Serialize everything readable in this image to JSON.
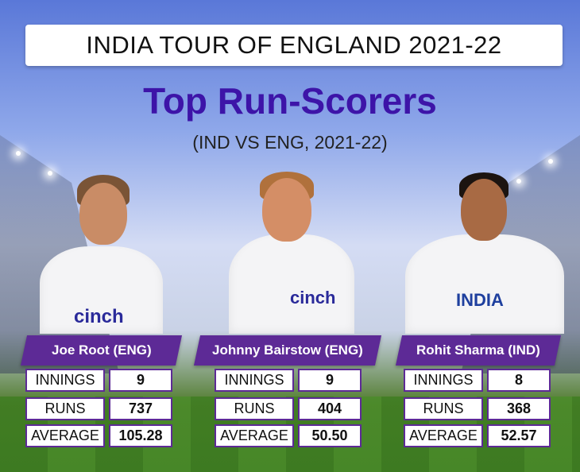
{
  "header": {
    "title": "INDIA TOUR OF ENGLAND 2021-22",
    "heading": "Top Run-Scorers",
    "subheading": "(IND VS ENG, 2021-22)"
  },
  "players": [
    {
      "name": "Joe Root (ENG)",
      "shirt_text": "cinch",
      "stats": [
        {
          "label": "INNINGS",
          "value": "9"
        },
        {
          "label": "RUNS",
          "value": "737"
        },
        {
          "label": "AVERAGE",
          "value": "105.28"
        }
      ]
    },
    {
      "name": "Johnny Bairstow (ENG)",
      "shirt_text": "cinch",
      "stats": [
        {
          "label": "INNINGS",
          "value": "9"
        },
        {
          "label": "RUNS",
          "value": "404"
        },
        {
          "label": "AVERAGE",
          "value": "50.50"
        }
      ]
    },
    {
      "name": "Rohit Sharma (IND)",
      "shirt_text": "INDIA",
      "stats": [
        {
          "label": "INNINGS",
          "value": "8"
        },
        {
          "label": "RUNS",
          "value": "368"
        },
        {
          "label": "AVERAGE",
          "value": "52.57"
        }
      ]
    }
  ],
  "colors": {
    "accent": "#5d2a96",
    "heading": "#3d14a8",
    "eng_text": "#2a2a9a",
    "ind_text": "#1e3f9e"
  }
}
